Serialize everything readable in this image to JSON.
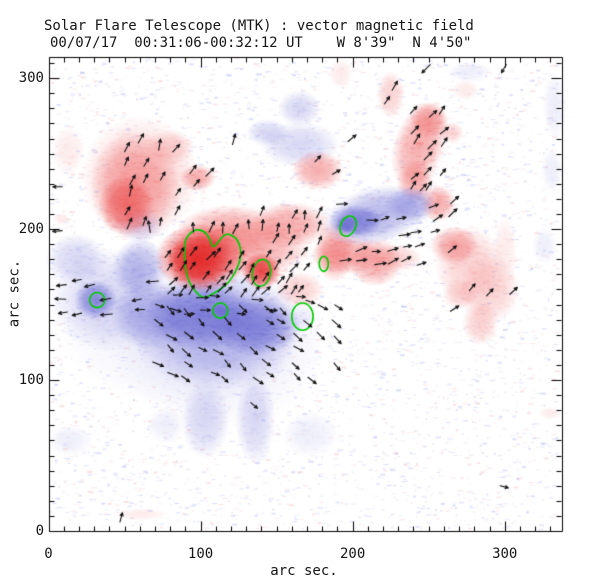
{
  "window": {
    "title": "Solar Flare Telescope (MTK) : vector magnetic field"
  },
  "chart_data": {
    "type": "heatmap",
    "variant": "vector-magnetogram",
    "title": "Solar Flare Telescope (MTK) : vector magnetic field",
    "subtitle": "00/07/17  00:31:06-00:32:12 UT    W 8'39\"  N 4'50\"",
    "xlabel": "arc sec.",
    "ylabel": "arc sec.",
    "xlim": [
      0,
      337
    ],
    "ylim": [
      0,
      314
    ],
    "xticks": [
      0,
      100,
      200,
      300
    ],
    "yticks": [
      0,
      100,
      200,
      300
    ],
    "minor_tick_step": 10,
    "grid": false,
    "legend": "none",
    "colors": {
      "positive_core": "#e42a2a",
      "positive_mid": "#f17878",
      "positive_light": "#f8c8c8",
      "negative_core": "#5252c6",
      "negative_mid": "#8a8add",
      "negative_light": "#d0d0f3",
      "contour": "#00cc00",
      "arrow": "#101010",
      "axis": "#000000",
      "background": "#ffffff"
    },
    "blob_format": "[x_arcsec, y_arcsec, rx, ry, level1to5, optional_rot_deg]",
    "blobs_positive": [
      [
        57,
        229,
        30,
        36,
        3
      ],
      [
        51,
        216,
        18,
        20,
        4
      ],
      [
        60,
        234,
        39,
        41,
        2
      ],
      [
        80,
        254,
        16,
        12,
        2
      ],
      [
        13,
        252,
        11,
        16,
        1
      ],
      [
        98,
        234,
        12,
        9,
        3
      ],
      [
        120,
        199,
        36,
        17,
        3
      ],
      [
        159,
        203,
        26,
        15,
        3
      ],
      [
        100,
        181,
        30,
        23,
        5
      ],
      [
        98,
        179,
        20,
        17,
        5
      ],
      [
        140,
        172,
        13,
        12,
        5
      ],
      [
        133,
        187,
        39,
        19,
        3
      ],
      [
        195,
        183,
        23,
        13,
        3
      ],
      [
        228,
        181,
        18,
        9,
        2
      ],
      [
        165,
        160,
        16,
        12,
        2
      ],
      [
        188,
        185,
        13,
        20,
        3
      ],
      [
        215,
        178,
        18,
        16,
        3
      ],
      [
        256,
        217,
        12,
        12,
        3
      ],
      [
        244,
        256,
        17,
        30,
        3,
        20
      ],
      [
        250,
        272,
        13,
        12,
        3
      ],
      [
        241,
        232,
        12,
        15,
        3
      ],
      [
        225,
        289,
        9,
        16,
        2
      ],
      [
        192,
        303,
        8,
        10,
        1
      ],
      [
        177,
        239,
        17,
        13,
        3
      ],
      [
        277,
        176,
        23,
        26,
        2
      ],
      [
        290,
        160,
        20,
        23,
        2
      ],
      [
        267,
        189,
        16,
        13,
        3
      ],
      [
        271,
        157,
        12,
        10,
        2
      ],
      [
        284,
        138,
        12,
        15,
        2
      ],
      [
        265,
        264,
        8,
        7,
        2
      ],
      [
        8,
        207,
        5,
        4,
        1
      ],
      [
        60,
        11,
        18,
        4,
        1
      ],
      [
        330,
        78,
        8,
        4,
        1
      ],
      [
        274,
        292,
        9,
        7,
        1
      ],
      [
        300,
        186,
        8,
        23,
        1
      ]
    ],
    "blobs_negative": [
      [
        31,
        153,
        14,
        13,
        4
      ],
      [
        39,
        153,
        38,
        34,
        2
      ],
      [
        67,
        143,
        26,
        23,
        3
      ],
      [
        110,
        133,
        56,
        40,
        3
      ],
      [
        113,
        123,
        69,
        56,
        1
      ],
      [
        100,
        143,
        36,
        23,
        4
      ],
      [
        136,
        136,
        30,
        20,
        4
      ],
      [
        103,
        74,
        16,
        26,
        2
      ],
      [
        136,
        74,
        13,
        30,
        2
      ],
      [
        77,
        70,
        12,
        12,
        1
      ],
      [
        14,
        60,
        14,
        10,
        1
      ],
      [
        172,
        64,
        18,
        15,
        1
      ],
      [
        215,
        209,
        36,
        19,
        3,
        -15
      ],
      [
        202,
        205,
        18,
        11,
        4
      ],
      [
        238,
        216,
        17,
        12,
        3
      ],
      [
        165,
        256,
        26,
        15,
        2
      ],
      [
        144,
        264,
        14,
        9,
        2
      ],
      [
        165,
        280,
        14,
        12,
        2
      ],
      [
        333,
        282,
        8,
        23,
        1
      ],
      [
        331,
        239,
        7,
        15,
        1
      ],
      [
        196,
        203,
        7,
        6,
        4
      ],
      [
        113,
        146,
        6,
        5,
        4
      ],
      [
        167,
        141,
        9,
        8,
        1
      ],
      [
        93,
        133,
        85,
        50,
        1
      ],
      [
        18,
        180,
        20,
        17,
        2
      ],
      [
        277,
        304,
        14,
        7,
        1
      ],
      [
        326,
        189,
        8,
        12,
        1
      ],
      [
        60,
        203,
        16,
        12,
        2
      ],
      [
        60,
        174,
        18,
        20,
        3
      ]
    ],
    "contour_polygon": [
      [
        89,
        186
      ],
      [
        90,
        194
      ],
      [
        96,
        200
      ],
      [
        102,
        199
      ],
      [
        106,
        194
      ],
      [
        108,
        187
      ],
      [
        112,
        192
      ],
      [
        116,
        197
      ],
      [
        121,
        196
      ],
      [
        125,
        192
      ],
      [
        127,
        184
      ],
      [
        125,
        176
      ],
      [
        121,
        168
      ],
      [
        116,
        162
      ],
      [
        108,
        157
      ],
      [
        102,
        154
      ],
      [
        97,
        158
      ],
      [
        92,
        165
      ],
      [
        90,
        174
      ]
    ],
    "contour_ellipses": [
      [
        140,
        171,
        6,
        9,
        10
      ],
      [
        113,
        146,
        5,
        5,
        0
      ],
      [
        167,
        142,
        7,
        9,
        0
      ],
      [
        197,
        202,
        5,
        7,
        25
      ],
      [
        32,
        153,
        5,
        5,
        0
      ],
      [
        181,
        177,
        3,
        5,
        0
      ]
    ],
    "arrow_group_format": "[x, y, w, h, spacing, angle_deg, jitter_deg, fill_fraction]",
    "arrow_groups": [
      [
        47,
        196,
        43,
        63,
        10,
        65,
        18,
        0.5
      ],
      [
        64,
        185,
        115,
        28,
        9,
        78,
        22,
        0.55
      ],
      [
        74,
        153,
        99,
        32,
        8,
        52,
        14,
        0.85
      ],
      [
        7,
        140,
        68,
        28,
        10,
        183,
        12,
        0.5
      ],
      [
        66,
        99,
        122,
        56,
        9,
        -38,
        18,
        0.5
      ],
      [
        67,
        141,
        112,
        15,
        9,
        -8,
        12,
        0.45
      ],
      [
        185,
        191,
        67,
        30,
        10,
        8,
        15,
        0.5
      ],
      [
        188,
        172,
        56,
        21,
        10,
        18,
        18,
        0.5
      ],
      [
        234,
        220,
        28,
        62,
        10,
        48,
        12,
        0.6
      ],
      [
        162,
        220,
        33,
        30,
        10,
        32,
        15,
        0.55
      ],
      [
        257,
        138,
        52,
        58,
        13,
        48,
        15,
        0.3
      ],
      [
        241,
        202,
        28,
        25,
        9,
        40,
        15,
        0.55
      ],
      [
        90,
        222,
        22,
        22,
        9,
        45,
        15,
        0.5
      ]
    ],
    "stray_arrows": [
      [
        9,
        228,
        180
      ],
      [
        9,
        199,
        185
      ],
      [
        251,
        309,
        225
      ],
      [
        301,
        309,
        240
      ],
      [
        133,
        85,
        -40
      ],
      [
        297,
        30,
        -15
      ],
      [
        47,
        6,
        75
      ],
      [
        197,
        258,
        40
      ],
      [
        121,
        256,
        75
      ],
      [
        226,
        292,
        60
      ],
      [
        221,
        283,
        55
      ],
      [
        59,
        257,
        60
      ]
    ],
    "noise": {
      "count": 4200,
      "blue_ratio": 0.63
    }
  }
}
